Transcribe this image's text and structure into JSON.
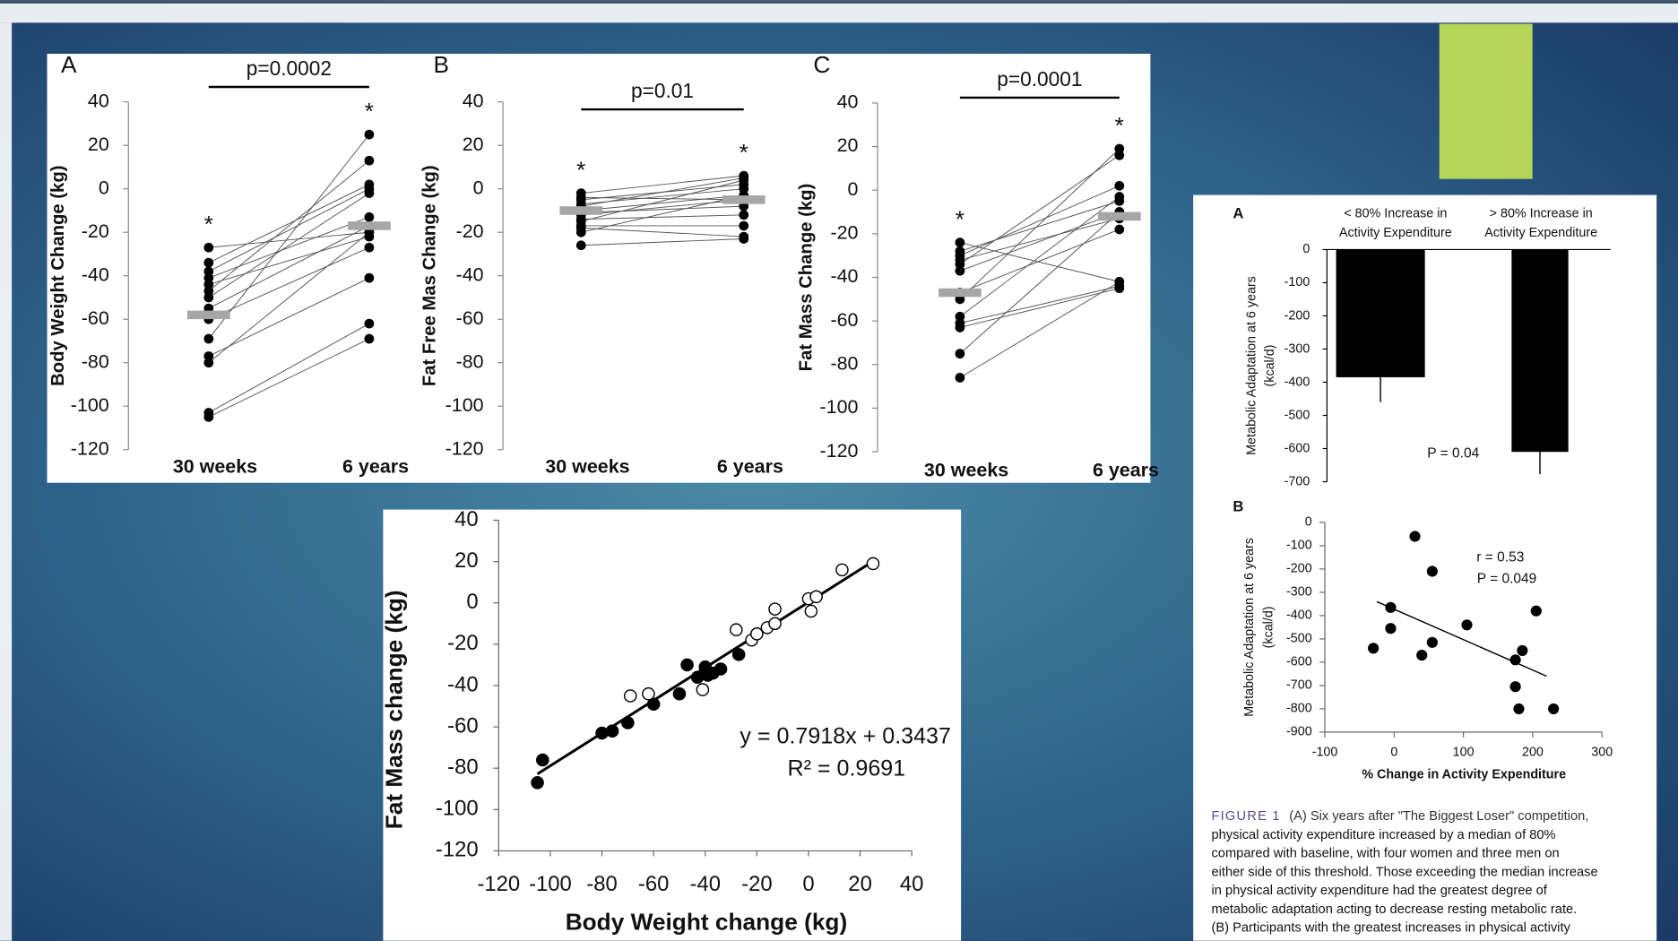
{
  "chart_data": [
    {
      "type": "paired-dot",
      "panel": "A",
      "ylabel": "Body Weight Change (kg)",
      "categories": [
        "30 weeks",
        "6 years"
      ],
      "values": [
        [
          -27,
          -20
        ],
        [
          -34,
          2
        ],
        [
          -38,
          0
        ],
        [
          -41,
          -13
        ],
        [
          -44,
          -22
        ],
        [
          -47,
          13
        ],
        [
          -50,
          -2
        ],
        [
          -55,
          -17
        ],
        [
          -60,
          -27
        ],
        [
          -69,
          25
        ],
        [
          -77,
          -41
        ],
        [
          -80,
          -20
        ],
        [
          -103,
          -62
        ],
        [
          -105,
          -69
        ]
      ],
      "medians": [
        -58,
        -17
      ],
      "markers": [
        "*",
        "*"
      ],
      "p_label": "p=0.0002",
      "ylim": [
        -120,
        40
      ],
      "yticks": [
        -120,
        -100,
        -80,
        -60,
        -40,
        -20,
        0,
        20,
        40
      ]
    },
    {
      "type": "paired-dot",
      "panel": "B",
      "ylabel": "Fat Free Mas  Change (kg)",
      "categories": [
        "30 weeks",
        "6 years"
      ],
      "values": [
        [
          -2,
          6
        ],
        [
          -4,
          -5
        ],
        [
          -5,
          2
        ],
        [
          -7,
          0
        ],
        [
          -8,
          5
        ],
        [
          -10,
          -3
        ],
        [
          -11,
          -8
        ],
        [
          -12,
          -5
        ],
        [
          -14,
          -12
        ],
        [
          -15,
          4
        ],
        [
          -17,
          -17
        ],
        [
          -18,
          -22
        ],
        [
          -20,
          -3
        ],
        [
          -26,
          -23
        ]
      ],
      "medians": [
        -10,
        -5
      ],
      "markers": [
        "*",
        "*"
      ],
      "p_label": "p=0.01",
      "ylim": [
        -120,
        40
      ],
      "yticks": [
        -120,
        -100,
        -80,
        -60,
        -40,
        -20,
        0,
        20,
        40
      ]
    },
    {
      "type": "paired-dot",
      "panel": "C",
      "ylabel": "Fat Mass Change (kg)",
      "categories": [
        "30 weeks",
        "6 years"
      ],
      "values": [
        [
          -24,
          -42
        ],
        [
          -28,
          -5
        ],
        [
          -30,
          2
        ],
        [
          -32,
          -13
        ],
        [
          -34,
          16
        ],
        [
          -37,
          -10
        ],
        [
          -47,
          -18
        ],
        [
          -50,
          19
        ],
        [
          -58,
          -3
        ],
        [
          -61,
          -44
        ],
        [
          -63,
          -45
        ],
        [
          -75,
          -10
        ],
        [
          -86,
          -42
        ]
      ],
      "medians": [
        -47,
        -12
      ],
      "markers": [
        "*",
        "*"
      ],
      "p_label": "p=0.0001",
      "ylim": [
        -120,
        40
      ],
      "yticks": [
        -120,
        -100,
        -80,
        -60,
        -40,
        -20,
        0,
        20,
        40
      ]
    },
    {
      "type": "scatter",
      "xlabel": "Body Weight change (kg)",
      "ylabel": "Fat Mass change (kg)",
      "series": [
        {
          "marker": "filled",
          "color": "#000000",
          "x": [
            -105,
            -103,
            -80,
            -76,
            -70,
            -60,
            -50,
            -47,
            -43,
            -40,
            -39,
            -37,
            -34,
            -27
          ],
          "y": [
            -87,
            -76,
            -63,
            -62,
            -58,
            -49,
            -44,
            -30,
            -36,
            -31,
            -35,
            -34,
            -32,
            -25
          ]
        },
        {
          "marker": "open",
          "color": "#000000",
          "x": [
            -69,
            -62,
            -41,
            -28,
            -22,
            -20,
            -16,
            -13,
            -13,
            0,
            1,
            3,
            13,
            25
          ],
          "y": [
            -45,
            -44,
            -42,
            -13,
            -18,
            -15,
            -12,
            -3,
            -10,
            2,
            -4,
            3,
            16,
            19
          ]
        }
      ],
      "fit": {
        "slope": 0.7918,
        "intercept": 0.3437,
        "equation": "y = 0.7918x + 0.3437",
        "r2_label": "R² = 0.9691"
      },
      "xlim": [
        -120,
        40
      ],
      "xticks": [
        -120,
        -100,
        -80,
        -60,
        -40,
        -20,
        0,
        20,
        40
      ],
      "ylim": [
        -120,
        40
      ],
      "yticks": [
        -120,
        -100,
        -80,
        -60,
        -40,
        -20,
        0,
        20,
        40
      ]
    },
    {
      "type": "bar",
      "panel": "A",
      "ylabel": [
        "Metabolic Adaptation at 6 years",
        "(kcal/d)"
      ],
      "categories": [
        "< 80% Increase in Activity Expenditure",
        "> 80% Increase in Activity Expenditure"
      ],
      "values": [
        -385,
        -610
      ],
      "errors": [
        75,
        67
      ],
      "color": "#000000",
      "annotation": "P = 0.04",
      "ylim": [
        -700,
        0
      ],
      "yticks": [
        -700,
        -600,
        -500,
        -400,
        -300,
        -200,
        -100,
        0
      ]
    },
    {
      "type": "scatter",
      "panel": "B",
      "ylabel": [
        "Metabolic Adaptation at 6 years",
        "(kcal/d)"
      ],
      "xlabel": "% Change in Activity Expenditure",
      "series": [
        {
          "marker": "filled",
          "color": "#000000",
          "x": [
            -30,
            -5,
            -5,
            30,
            40,
            55,
            55,
            105,
            175,
            175,
            180,
            185,
            205,
            230
          ],
          "y": [
            -540,
            -365,
            -455,
            -60,
            -570,
            -210,
            -515,
            -440,
            -590,
            -705,
            -800,
            -550,
            -380,
            -800
          ]
        }
      ],
      "fit_line": {
        "x": [
          -25,
          220
        ],
        "y": [
          -340,
          -660
        ]
      },
      "annotations": [
        "r = 0.53",
        "P = 0.049"
      ],
      "xlim": [
        -100,
        300
      ],
      "xticks": [
        -100,
        0,
        100,
        200,
        300
      ],
      "ylim": [
        -900,
        0
      ],
      "yticks": [
        -900,
        -800,
        -700,
        -600,
        -500,
        -400,
        -300,
        -200,
        -100,
        0
      ]
    }
  ],
  "caption": {
    "label": "FIGURE 1",
    "lines": [
      "(A) Six years after \"The Biggest Loser\" competition,",
      "physical activity expenditure increased by a median of 80%",
      "compared with baseline, with four women and three men on",
      "either side of this threshold. Those exceeding the median increase",
      "in physical activity expenditure had the greatest degree of",
      "metabolic adaptation acting to decrease resting metabolic rate.",
      "(B) Participants with the greatest increases in physical activity"
    ]
  }
}
